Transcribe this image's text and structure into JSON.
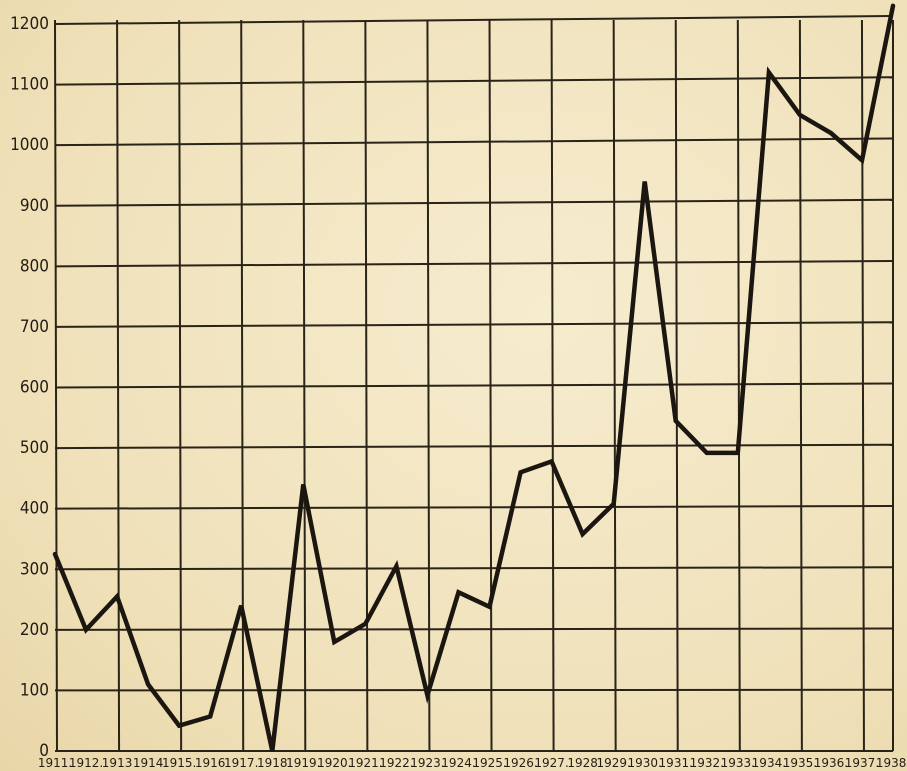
{
  "chart_data": {
    "type": "line",
    "title": "",
    "xlabel": "",
    "ylabel": "",
    "ylim": [
      0,
      1200
    ],
    "y_ticks": [
      0,
      100,
      200,
      300,
      400,
      500,
      600,
      700,
      800,
      900,
      1000,
      1100,
      1200
    ],
    "y_tick_labels": [
      "0",
      "100",
      "200",
      "300",
      "400",
      "500",
      "600",
      "700",
      "800",
      "900",
      "1000",
      "1100",
      "1200"
    ],
    "x_tick_labels": [
      "1911.",
      "1912.",
      "1913",
      "1914",
      "1915.",
      "1916",
      "1917.",
      "1918",
      "1919.",
      "1920.",
      "1921.",
      "1922.",
      "1923.",
      "1924.",
      "1925.",
      "1926.",
      "1927.",
      "1928",
      "1929.",
      "1930.",
      "1931.",
      "1932.",
      "1933.",
      "1934.",
      "1935.",
      "1936.",
      "1937.",
      "1938."
    ],
    "grid": true,
    "legend": "none",
    "line_color": "#1c1610",
    "series": [
      {
        "x": [
          1911,
          1912,
          1913,
          1914,
          1915,
          1916,
          1917,
          1918,
          1919,
          1920,
          1921,
          1922,
          1923,
          1924,
          1925,
          1926,
          1927,
          1928,
          1929,
          1930,
          1931,
          1932,
          1933,
          1934,
          1935,
          1936,
          1937,
          1938
        ],
        "values": [
          325,
          200,
          255,
          110,
          42,
          57,
          240,
          0,
          440,
          180,
          210,
          305,
          92,
          262,
          238,
          460,
          478,
          358,
          408,
          940,
          545,
          492,
          492,
          1120,
          1050,
          1020,
          975,
          1230
        ]
      }
    ]
  }
}
